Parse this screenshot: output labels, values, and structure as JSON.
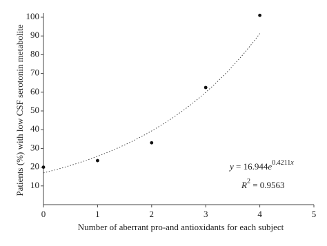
{
  "chart_data": {
    "type": "scatter",
    "x_label": "Number of aberrant pro-and antioxidants for each subject",
    "y_label": "Patients (%) with low CSF serotonin metabolite",
    "x": [
      0,
      1,
      2,
      3,
      4
    ],
    "values": [
      20,
      23.5,
      33,
      62.5,
      101
    ],
    "color": "#111111",
    "xlim": [
      0,
      5
    ],
    "xticks": [
      0,
      1,
      2,
      3,
      4,
      5
    ],
    "ylim": [
      0,
      100
    ],
    "yticks": [
      10,
      20,
      30,
      40,
      50,
      60,
      70,
      80,
      90,
      100
    ],
    "trendline": {
      "y": "y",
      "eq": " = ",
      "a": 16.944,
      "e": "e",
      "b": 0.4211,
      "x": "x"
    },
    "r_squared": {
      "label": "R",
      "sup": "2",
      "eq": " = ",
      "value": 0.9563
    }
  }
}
